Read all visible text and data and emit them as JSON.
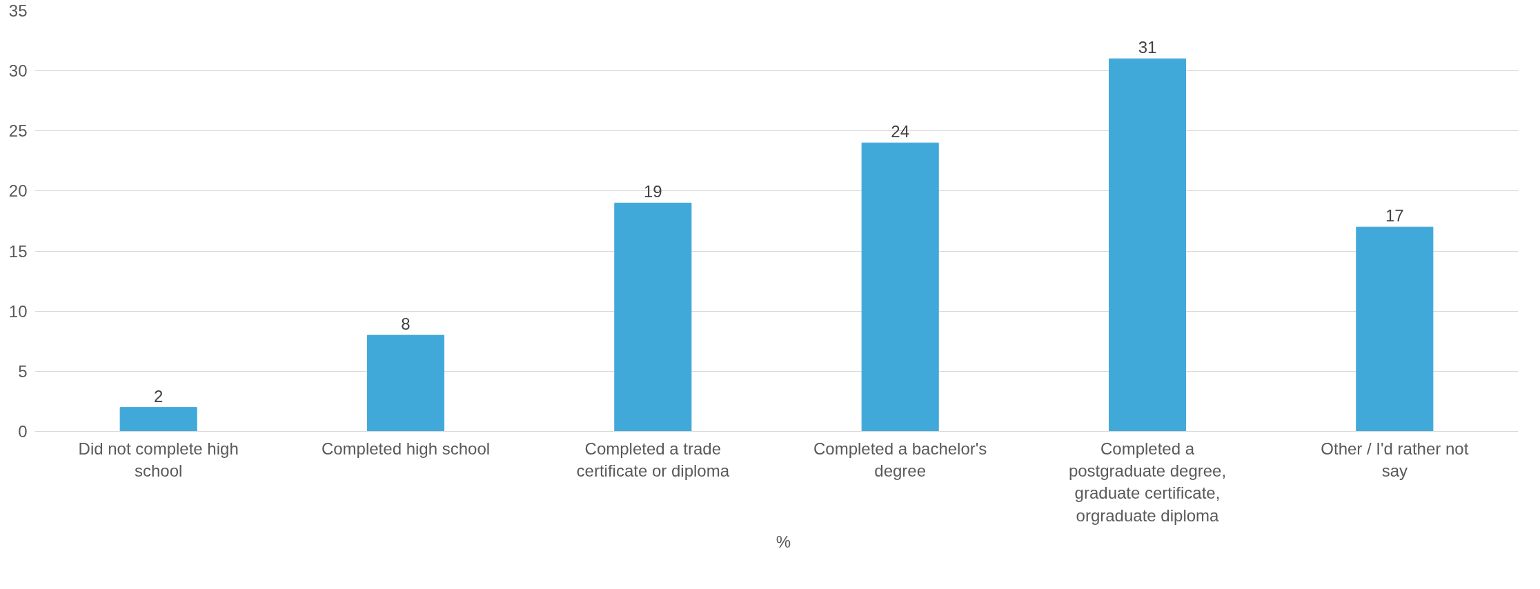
{
  "chart_data": {
    "type": "bar",
    "categories": [
      "Did not complete high school",
      "Completed high school",
      "Completed a trade certificate or diploma",
      "Completed a bachelor's degree",
      "Completed a postgraduate degree, graduate certificate, orgraduate diploma",
      "Other / I'd rather not say"
    ],
    "series": [
      {
        "name": "%",
        "color": "#41a9d9",
        "values": [
          2,
          8,
          19,
          24,
          31,
          17
        ]
      }
    ],
    "ylim": [
      0,
      35
    ],
    "yticks": [
      0,
      5,
      10,
      15,
      20,
      25,
      30,
      35
    ],
    "grid": "y",
    "legend": "bottom",
    "data_labels": true
  }
}
